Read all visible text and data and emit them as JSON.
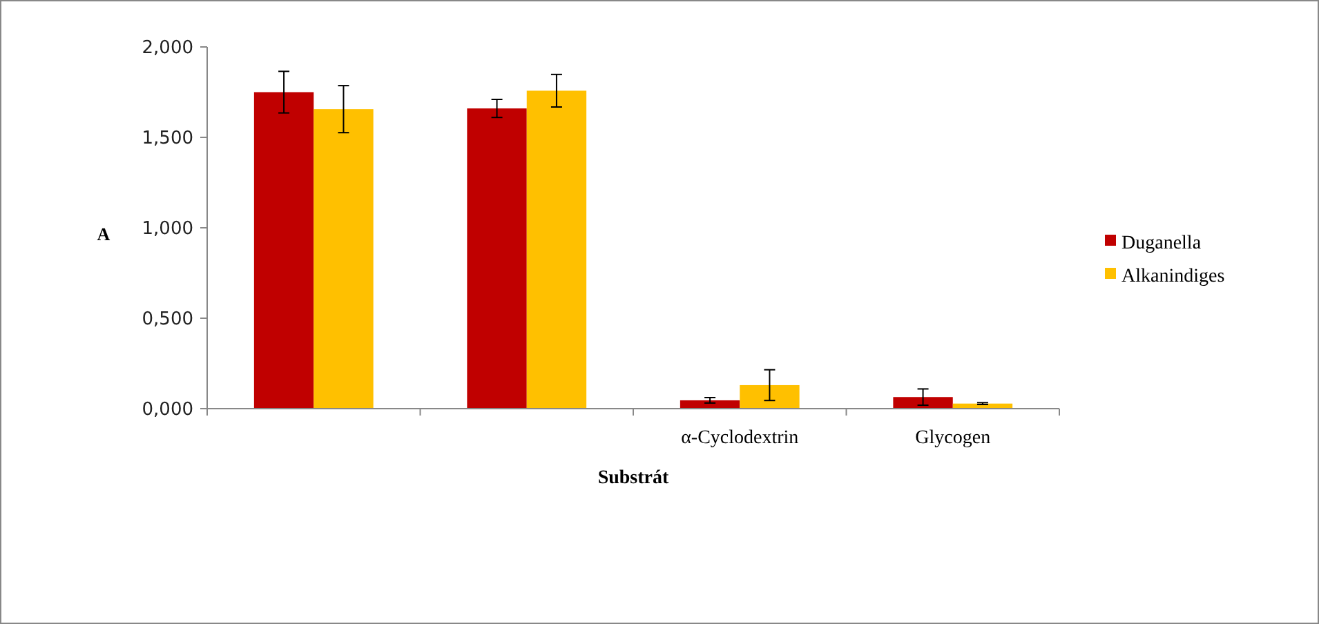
{
  "chart_data": {
    "type": "bar",
    "xlabel": "Substrát",
    "ylabel": "A",
    "categories": [
      null,
      null,
      "α-Cyclodextrin",
      "Glycogen"
    ],
    "series": [
      {
        "name": "Duganella",
        "color": "#c00000",
        "values": [
          1.75,
          1.66,
          0.046,
          0.064
        ],
        "errors": [
          0.115,
          0.05,
          0.015,
          0.045
        ]
      },
      {
        "name": "Alkanindiges",
        "color": "#ffc000",
        "values": [
          1.656,
          1.758,
          0.13,
          0.028
        ],
        "errors": [
          0.13,
          0.09,
          0.085,
          0.005
        ]
      }
    ],
    "ylim": [
      0,
      2
    ],
    "yticks": [
      {
        "value": 0,
        "label": "0,000"
      },
      {
        "value": 0.5,
        "label": "0,500"
      },
      {
        "value": 1,
        "label": "1,000"
      },
      {
        "value": 1.5,
        "label": "1,500"
      },
      {
        "value": 2,
        "label": "2,000"
      }
    ],
    "legend": "right",
    "grid": false
  }
}
